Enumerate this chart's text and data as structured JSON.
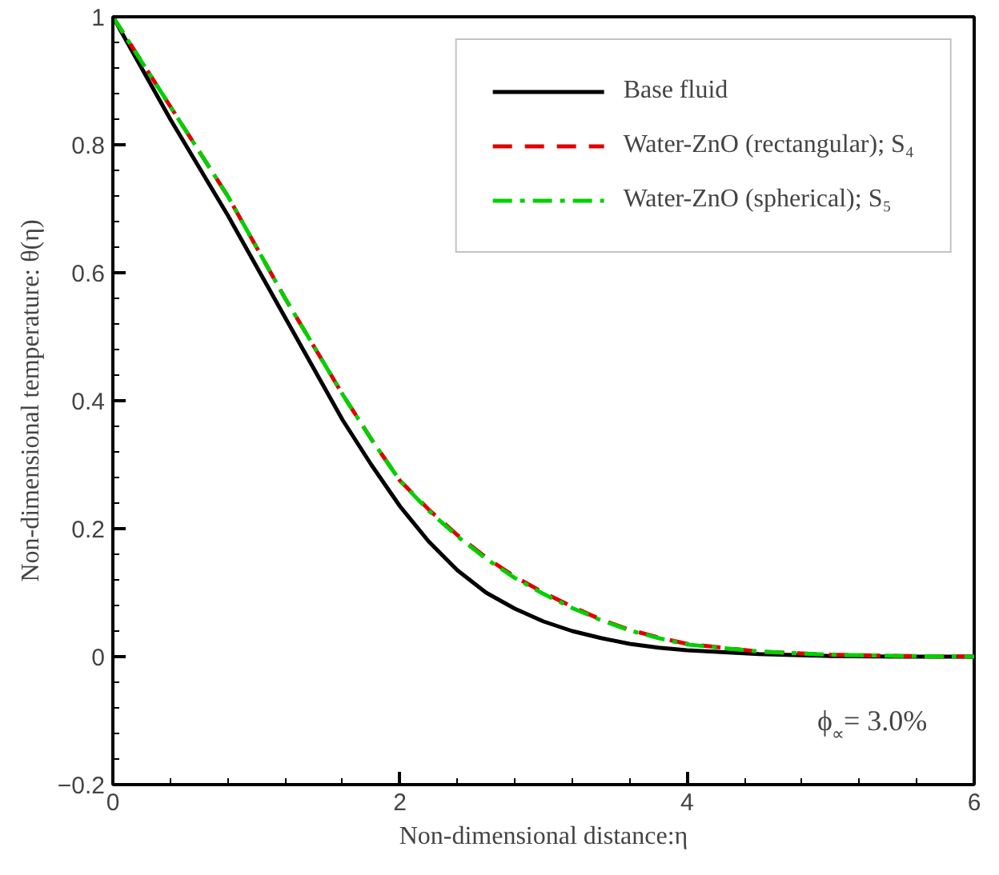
{
  "chart_data": {
    "type": "line",
    "xlabel": "Non-dimensional distance:η",
    "ylabel": "Non-dimensional temperature: θ(η)",
    "xlim": [
      0,
      6
    ],
    "ylim": [
      -0.2,
      1
    ],
    "xticks": [
      0,
      2,
      4,
      6
    ],
    "yticks": [
      -0.2,
      0,
      0.2,
      0.4,
      0.6,
      0.8,
      1
    ],
    "x": [
      0,
      0.2,
      0.4,
      0.6,
      0.8,
      1.0,
      1.2,
      1.4,
      1.6,
      1.8,
      2.0,
      2.2,
      2.4,
      2.6,
      2.8,
      3.0,
      3.2,
      3.4,
      3.6,
      3.8,
      4.0,
      4.5,
      5.0,
      5.5,
      6.0
    ],
    "series": [
      {
        "name": "Base fluid",
        "color": "#000000",
        "line_style": "solid",
        "values": [
          1,
          0.92,
          0.84,
          0.765,
          0.69,
          0.61,
          0.53,
          0.45,
          0.37,
          0.3,
          0.235,
          0.18,
          0.135,
          0.1,
          0.075,
          0.055,
          0.04,
          0.029,
          0.02,
          0.014,
          0.01,
          0.004,
          0.001,
          0,
          0
        ]
      },
      {
        "name": "Water-ZnO (rectangular); S₄",
        "color": "#e00000",
        "line_style": "dashed",
        "values": [
          1,
          0.93,
          0.86,
          0.79,
          0.72,
          0.64,
          0.56,
          0.485,
          0.41,
          0.34,
          0.275,
          0.23,
          0.19,
          0.155,
          0.125,
          0.1,
          0.078,
          0.058,
          0.042,
          0.03,
          0.02,
          0.008,
          0.003,
          0.001,
          0
        ]
      },
      {
        "name": "Water-ZnO (spherical); S₅",
        "color": "#00d000",
        "line_style": "dashdot",
        "values": [
          1,
          0.93,
          0.86,
          0.79,
          0.72,
          0.64,
          0.56,
          0.485,
          0.41,
          0.34,
          0.275,
          0.228,
          0.188,
          0.153,
          0.123,
          0.098,
          0.076,
          0.057,
          0.041,
          0.029,
          0.019,
          0.008,
          0.003,
          0.001,
          0
        ]
      }
    ],
    "legend": "top right",
    "grid": false,
    "annotations": [
      "ϕ$_{∝}$= 3.0%"
    ]
  }
}
